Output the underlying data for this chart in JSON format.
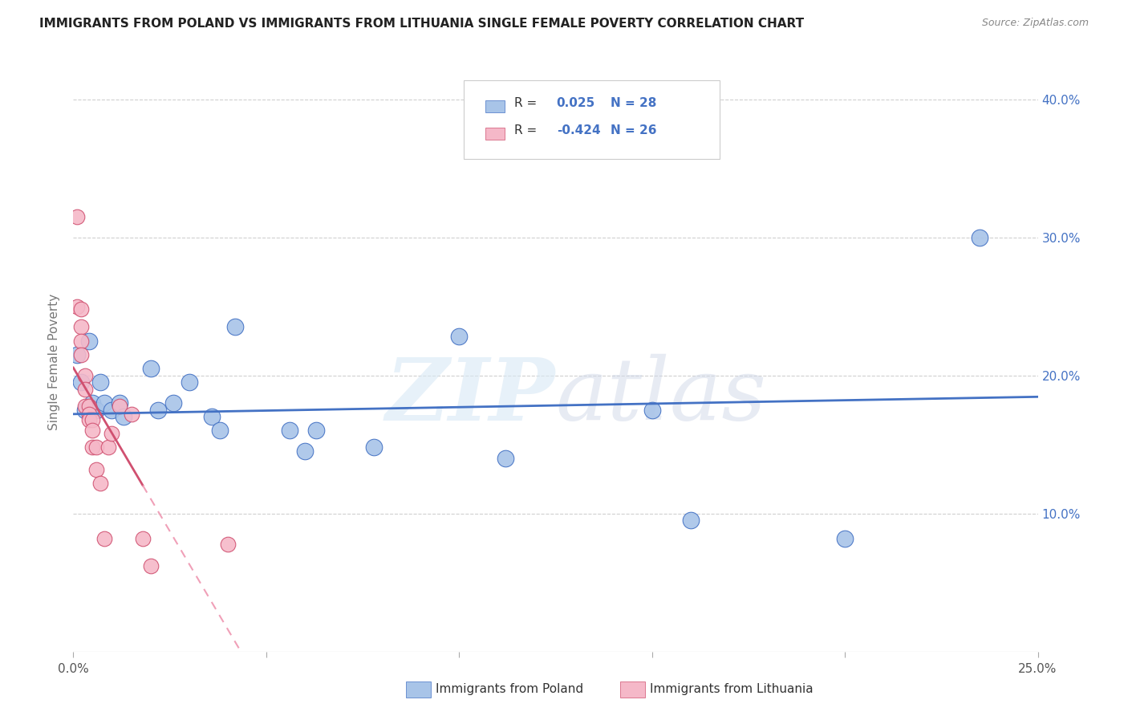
{
  "title": "IMMIGRANTS FROM POLAND VS IMMIGRANTS FROM LITHUANIA SINGLE FEMALE POVERTY CORRELATION CHART",
  "source": "Source: ZipAtlas.com",
  "ylabel": "Single Female Poverty",
  "xlim": [
    0.0,
    0.25
  ],
  "ylim": [
    0.0,
    0.42
  ],
  "y_ticks": [
    0.1,
    0.2,
    0.3,
    0.4
  ],
  "y_tick_labels": [
    "10.0%",
    "20.0%",
    "30.0%",
    "40.0%"
  ],
  "poland_color": "#a8c4e8",
  "poland_color_edge": "#4472c4",
  "lithuania_color": "#f5b8c8",
  "lithuania_color_edge": "#d05070",
  "poland_scatter": [
    [
      0.001,
      0.215
    ],
    [
      0.002,
      0.195
    ],
    [
      0.003,
      0.175
    ],
    [
      0.004,
      0.225
    ],
    [
      0.005,
      0.18
    ],
    [
      0.006,
      0.175
    ],
    [
      0.007,
      0.195
    ],
    [
      0.008,
      0.18
    ],
    [
      0.01,
      0.175
    ],
    [
      0.012,
      0.18
    ],
    [
      0.013,
      0.17
    ],
    [
      0.02,
      0.205
    ],
    [
      0.022,
      0.175
    ],
    [
      0.026,
      0.18
    ],
    [
      0.03,
      0.195
    ],
    [
      0.036,
      0.17
    ],
    [
      0.038,
      0.16
    ],
    [
      0.042,
      0.235
    ],
    [
      0.056,
      0.16
    ],
    [
      0.06,
      0.145
    ],
    [
      0.063,
      0.16
    ],
    [
      0.078,
      0.148
    ],
    [
      0.1,
      0.228
    ],
    [
      0.112,
      0.14
    ],
    [
      0.15,
      0.175
    ],
    [
      0.16,
      0.095
    ],
    [
      0.2,
      0.082
    ],
    [
      0.235,
      0.3
    ]
  ],
  "lithuania_scatter": [
    [
      0.001,
      0.315
    ],
    [
      0.001,
      0.25
    ],
    [
      0.002,
      0.248
    ],
    [
      0.002,
      0.235
    ],
    [
      0.002,
      0.225
    ],
    [
      0.002,
      0.215
    ],
    [
      0.003,
      0.2
    ],
    [
      0.003,
      0.19
    ],
    [
      0.003,
      0.178
    ],
    [
      0.004,
      0.178
    ],
    [
      0.004,
      0.172
    ],
    [
      0.004,
      0.168
    ],
    [
      0.005,
      0.168
    ],
    [
      0.005,
      0.16
    ],
    [
      0.005,
      0.148
    ],
    [
      0.006,
      0.148
    ],
    [
      0.006,
      0.132
    ],
    [
      0.007,
      0.122
    ],
    [
      0.008,
      0.082
    ],
    [
      0.009,
      0.148
    ],
    [
      0.01,
      0.158
    ],
    [
      0.012,
      0.178
    ],
    [
      0.015,
      0.172
    ],
    [
      0.018,
      0.082
    ],
    [
      0.02,
      0.062
    ],
    [
      0.04,
      0.078
    ]
  ],
  "watermark_1": "ZIP",
  "watermark_2": "atlas",
  "background_color": "#ffffff",
  "grid_color": "#d0d0d0",
  "trend_poland_color": "#4472c4",
  "trend_lithuania_solid_color": "#d05070",
  "trend_lithuania_dash_color": "#f0a0b8"
}
